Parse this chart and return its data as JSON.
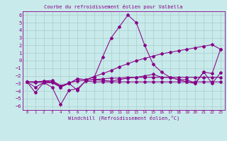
{
  "title": "Courbe du refroidissement éolien pour Valbella",
  "xlabel": "Windchill (Refroidissement éolien,°C)",
  "bg_color": "#c8eaea",
  "line_color": "#880088",
  "grid_color": "#aacccc",
  "xlim": [
    -0.5,
    23.5
  ],
  "ylim": [
    -6.5,
    6.5
  ],
  "xticks": [
    0,
    1,
    2,
    3,
    4,
    5,
    6,
    7,
    8,
    9,
    10,
    11,
    12,
    13,
    14,
    15,
    16,
    17,
    18,
    19,
    20,
    21,
    22,
    23
  ],
  "yticks": [
    -6,
    -5,
    -4,
    -3,
    -2,
    -1,
    0,
    1,
    2,
    3,
    4,
    5,
    6
  ],
  "series": [
    {
      "x": [
        0,
        1,
        2,
        3,
        4,
        5,
        6,
        7,
        8,
        9,
        10,
        11,
        12,
        13,
        14,
        15,
        16,
        17,
        18,
        19,
        20,
        21,
        22,
        23
      ],
      "y": [
        -2.8,
        -4.2,
        -2.9,
        -3.5,
        -5.8,
        -3.9,
        -3.7,
        -2.7,
        -2.8,
        -2.8,
        -2.8,
        -2.8,
        -2.8,
        -2.8,
        -2.8,
        -2.8,
        -2.8,
        -2.8,
        -2.8,
        -2.8,
        -2.8,
        -2.8,
        -2.8,
        -2.8
      ]
    },
    {
      "x": [
        0,
        1,
        2,
        3,
        4,
        5,
        6,
        7,
        8,
        9,
        10,
        11,
        12,
        13,
        14,
        15,
        16,
        17,
        18,
        19,
        20,
        21,
        22,
        23
      ],
      "y": [
        -2.8,
        -2.8,
        -2.9,
        -2.9,
        -3.5,
        -2.9,
        -2.7,
        -2.6,
        -2.5,
        -2.4,
        -2.3,
        -2.3,
        -2.2,
        -2.2,
        -2.2,
        -2.2,
        -2.2,
        -2.2,
        -2.2,
        -2.2,
        -2.2,
        -2.2,
        -2.2,
        -2.2
      ]
    },
    {
      "x": [
        0,
        1,
        2,
        3,
        4,
        5,
        6,
        7,
        8,
        9,
        10,
        11,
        12,
        13,
        14,
        15,
        16,
        17,
        18,
        19,
        20,
        21,
        22,
        23
      ],
      "y": [
        -2.8,
        -3.5,
        -2.9,
        -2.8,
        -3.5,
        -3.0,
        -3.9,
        -2.6,
        -2.5,
        -2.6,
        -2.7,
        -2.5,
        -2.3,
        -2.2,
        -2.0,
        -1.8,
        -2.2,
        -2.2,
        -2.5,
        -2.5,
        -3.0,
        -1.5,
        -3.0,
        -1.6
      ]
    },
    {
      "x": [
        0,
        1,
        2,
        3,
        4,
        5,
        6,
        7,
        8,
        9,
        10,
        11,
        12,
        13,
        14,
        15,
        16,
        17,
        18,
        19,
        20,
        21,
        22,
        23
      ],
      "y": [
        -2.8,
        -2.9,
        -2.7,
        -2.8,
        -3.3,
        -3.0,
        -2.4,
        -2.5,
        -2.1,
        -1.7,
        -1.3,
        -0.8,
        -0.4,
        0.0,
        0.3,
        0.6,
        0.9,
        1.1,
        1.3,
        1.5,
        1.7,
        1.9,
        2.1,
        1.5
      ]
    },
    {
      "x": [
        0,
        1,
        2,
        3,
        4,
        5,
        6,
        7,
        8,
        9,
        10,
        11,
        12,
        13,
        14,
        15,
        16,
        17,
        18,
        19,
        20,
        21,
        22,
        23
      ],
      "y": [
        -2.8,
        -2.8,
        -2.7,
        -2.6,
        -3.3,
        -3.0,
        -2.4,
        -2.5,
        -2.2,
        0.5,
        3.0,
        4.5,
        6.0,
        5.0,
        2.0,
        -0.5,
        -1.5,
        -2.2,
        -2.5,
        -2.8,
        -3.0,
        -1.5,
        -1.7,
        1.5
      ]
    }
  ]
}
